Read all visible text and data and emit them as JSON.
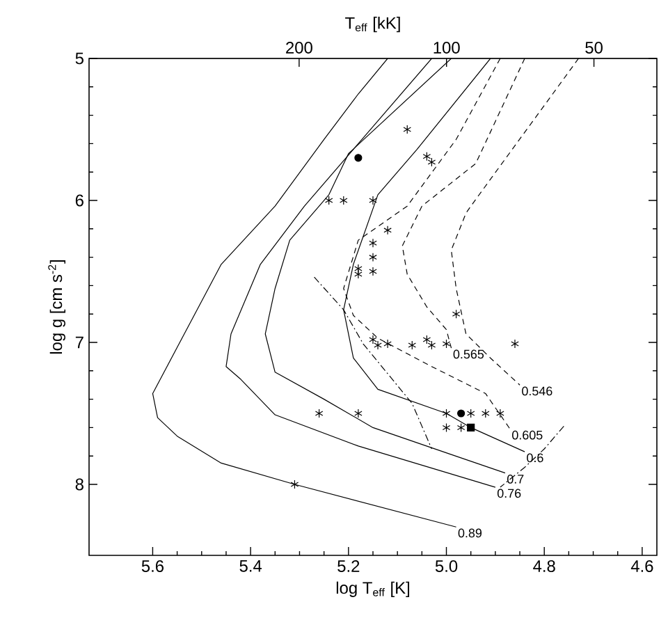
{
  "chart_data": {
    "type": "line",
    "xlabel": "log T$_{eff}$ [K]",
    "ylabel": "log g [cm s$^{-2}$]",
    "x2label": "T$_{eff}$  [kK]",
    "xlim": [
      5.73,
      4.57
    ],
    "ylim": [
      8.5,
      5.0
    ],
    "x2lim": [
      537,
      37.2
    ],
    "log": "x2",
    "xticks": [
      5.6,
      5.4,
      5.2,
      {
        "value": 5,
        "label": "5.0"
      },
      4.8,
      4.6
    ],
    "yticks": [
      5,
      6,
      7,
      8
    ],
    "x2ticks": [
      200,
      100,
      50
    ],
    "series": [
      {
        "name": "0.89",
        "type": "line",
        "color": "#000000",
        "line_style": "solid",
        "x": [
          5.12,
          5.18,
          5.25,
          5.35,
          5.46,
          5.6,
          5.59,
          5.55,
          5.46,
          5.31,
          4.98
        ],
        "values": [
          5.0,
          5.25,
          5.57,
          6.04,
          6.45,
          7.36,
          7.53,
          7.66,
          7.85,
          8.0,
          8.3
        ]
      },
      {
        "name": "0.76",
        "type": "line",
        "color": "#000000",
        "line_style": "solid",
        "x": [
          5.03,
          5.29,
          5.38,
          5.44,
          5.45,
          5.42,
          5.35,
          5.18,
          4.9
        ],
        "values": [
          5.0,
          6.04,
          6.45,
          6.94,
          7.17,
          7.26,
          7.51,
          7.73,
          8.02
        ]
      },
      {
        "name": "0.7",
        "type": "line",
        "color": "#000000",
        "line_style": "solid",
        "x": [
          4.99,
          5.2,
          5.24,
          5.32,
          5.35,
          5.37,
          5.35,
          5.25,
          5.15,
          4.99,
          4.88
        ],
        "values": [
          5.0,
          5.67,
          5.96,
          6.28,
          6.62,
          6.94,
          7.21,
          7.4,
          7.6,
          7.79,
          7.92
        ]
      },
      {
        "name": "0.6",
        "type": "line",
        "color": "#000000",
        "line_style": "solid",
        "x": [
          4.91,
          5.06,
          5.14,
          5.19,
          5.21,
          5.19,
          5.14,
          5.0,
          4.95,
          4.84
        ],
        "values": [
          5.0,
          5.64,
          5.96,
          6.45,
          6.77,
          7.11,
          7.33,
          7.5,
          7.6,
          7.77
        ]
      },
      {
        "name": "0.605",
        "type": "line",
        "color": "#000000",
        "line_style": "dashed",
        "x": [
          4.89,
          4.98,
          5.08,
          5.18,
          5.21,
          5.19,
          5.14,
          5.03,
          4.92,
          4.87
        ],
        "values": [
          5.0,
          5.57,
          6.04,
          6.28,
          6.62,
          6.81,
          6.97,
          7.17,
          7.36,
          7.61
        ]
      },
      {
        "name": "0.565",
        "type": "line",
        "color": "#000000",
        "line_style": "dashed",
        "x": [
          4.84,
          4.94,
          5.05,
          5.09,
          5.08,
          5.04,
          5.0,
          4.99
        ],
        "values": [
          5.0,
          5.74,
          6.04,
          6.32,
          6.52,
          6.75,
          6.91,
          7.04
        ]
      },
      {
        "name": "0.546",
        "type": "line",
        "color": "#000000",
        "line_style": "dashed",
        "x": [
          4.73,
          4.95,
          4.96,
          4.99,
          4.98,
          4.96,
          4.91,
          4.85
        ],
        "values": [
          5.0,
          6.04,
          6.09,
          6.35,
          6.62,
          6.94,
          7.11,
          7.3
        ]
      },
      {
        "type": "line",
        "color": "#000000",
        "line_style": "dashdot",
        "x": [
          5.27,
          5.21,
          5.17,
          5.07,
          5.03
        ],
        "values": [
          6.54,
          6.77,
          7.01,
          7.43,
          7.75
        ]
      },
      {
        "type": "line",
        "color": "#000000",
        "line_style": "dashdot",
        "x": [
          4.76,
          4.8,
          4.84,
          4.89
        ],
        "values": [
          7.59,
          7.75,
          7.88,
          8.02
        ]
      },
      {
        "type": "scatter",
        "color": "#000000",
        "marker": "cross",
        "x": [
          5.08,
          5.04,
          5.03,
          5.24,
          5.21,
          5.15,
          5.12,
          5.15,
          5.15,
          5.18,
          5.18,
          5.15,
          4.98,
          5.15,
          5.14,
          5.12,
          5.07,
          5.04,
          5.03,
          5.0,
          4.86,
          5.26,
          5.18,
          5.0,
          4.95,
          4.92,
          4.89,
          5.0,
          4.97,
          5.31
        ],
        "values": [
          5.5,
          5.69,
          5.73,
          6.0,
          6.0,
          6.0,
          6.21,
          6.3,
          6.4,
          6.48,
          6.52,
          6.5,
          6.8,
          6.98,
          7.02,
          7.01,
          7.02,
          6.98,
          7.02,
          7.01,
          7.01,
          7.5,
          7.5,
          7.5,
          7.5,
          7.5,
          7.5,
          7.6,
          7.6,
          8.0
        ]
      },
      {
        "type": "scatter",
        "color": "#000000",
        "marker": "circle",
        "x": [
          5.18,
          4.97
        ],
        "values": [
          5.7,
          7.5
        ]
      },
      {
        "type": "scatter",
        "color": "#000000",
        "marker": "square",
        "x": [
          4.95
        ],
        "values": [
          7.6
        ]
      }
    ]
  }
}
